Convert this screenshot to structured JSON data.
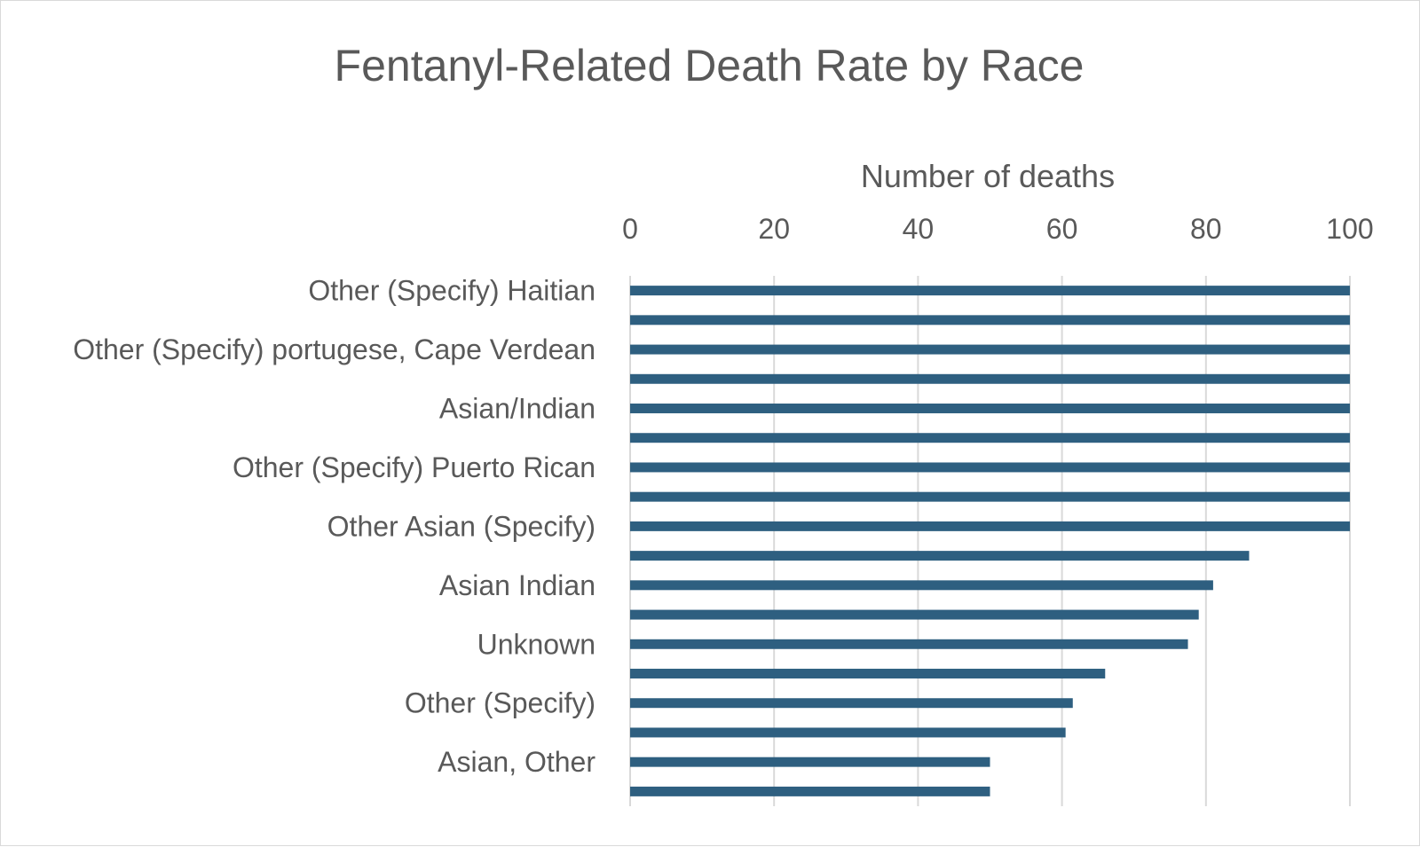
{
  "chart_data": {
    "type": "bar",
    "orientation": "horizontal",
    "title": "Fentanyl-Related Death Rate by Race",
    "xlabel": "Number of deaths",
    "ylabel": "",
    "xlim": [
      0,
      100
    ],
    "x_ticks": [
      "0",
      "20",
      "40",
      "60",
      "80",
      "100"
    ],
    "x_axis_position": "top",
    "grid": true,
    "bar_color": "#2e5f80",
    "categories": [
      "Other (Specify) Haitian",
      "",
      "Other (Specify) portugese, Cape Verdean",
      "",
      "Asian/Indian",
      "",
      "Other (Specify) Puerto Rican",
      "",
      "Other Asian (Specify)",
      "",
      "Asian Indian",
      "",
      "Unknown",
      "",
      "Other (Specify)",
      "",
      "Asian, Other",
      ""
    ],
    "values": [
      100,
      100,
      100,
      100,
      100,
      100,
      100,
      100,
      100,
      86,
      81,
      79,
      77.5,
      66,
      61.5,
      60.5,
      50,
      50
    ]
  }
}
